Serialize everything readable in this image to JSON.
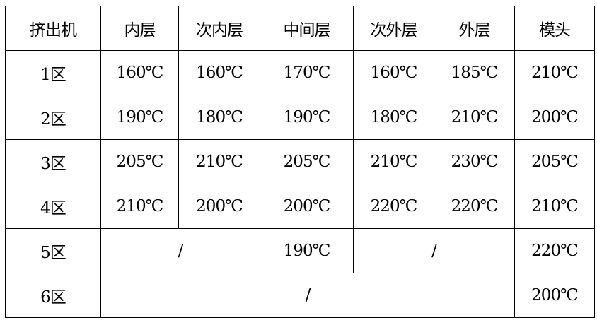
{
  "table": {
    "headers": [
      "挤出机",
      "内层",
      "次内层",
      "中间层",
      "次外层",
      "外层",
      "模头"
    ],
    "rows": [
      {
        "zone": "1区",
        "cells": [
          "160℃",
          "160℃",
          "170℃",
          "160℃",
          "185℃",
          "210℃"
        ]
      },
      {
        "zone": "2区",
        "cells": [
          "190℃",
          "180℃",
          "190℃",
          "180℃",
          "210℃",
          "200℃"
        ]
      },
      {
        "zone": "3区",
        "cells": [
          "205℃",
          "210℃",
          "205℃",
          "210℃",
          "230℃",
          "205℃"
        ]
      },
      {
        "zone": "4区",
        "cells": [
          "210℃",
          "200℃",
          "200℃",
          "220℃",
          "220℃",
          "210℃"
        ]
      },
      {
        "zone": "5区",
        "inner_span": "/",
        "middle": "190℃",
        "outer_span": "/",
        "die": "220℃"
      },
      {
        "zone": "6区",
        "span": "/",
        "die": "200℃"
      }
    ]
  }
}
